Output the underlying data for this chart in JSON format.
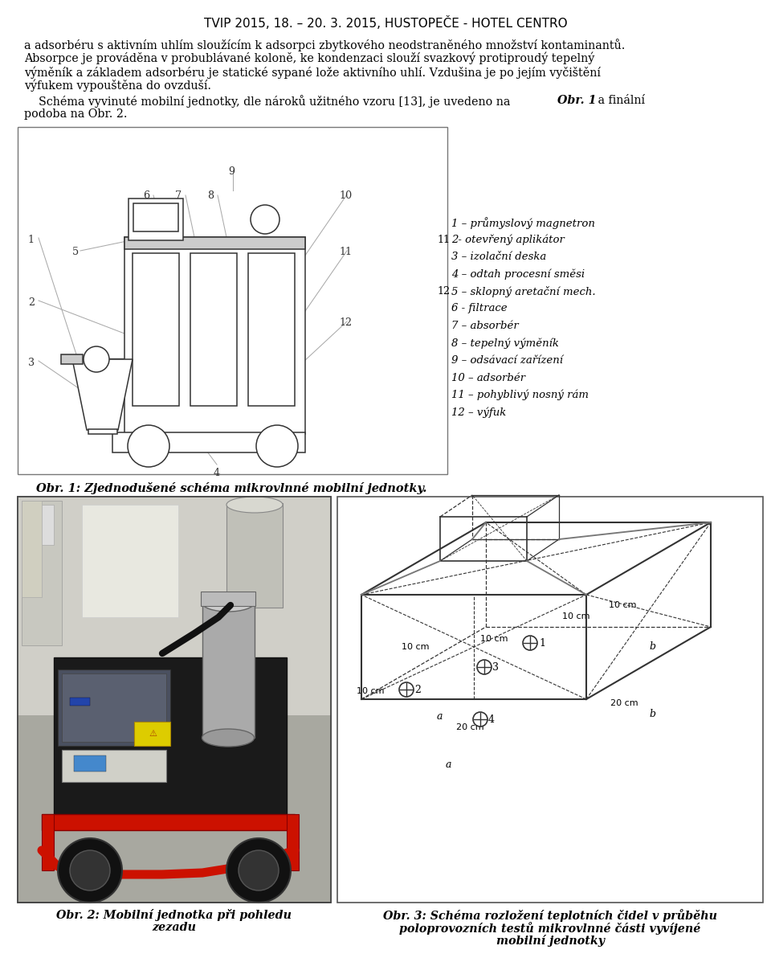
{
  "title": "TVIP 2015, 18. – 20. 3. 2015, HUSTOPEČE - HOTEL CENTRO",
  "legend_items": [
    "1 – průmyslový magnetron",
    "2- otevřený aplikátor",
    "3 – izolační deska",
    "4 – odtah procesní směsi",
    "5 – sklopný aretační mech.",
    "6 - filtrace",
    "7 – absorbér",
    "8 – tepelný výměník",
    "9 – odsávací zařízení",
    "10 – adsorbér",
    "11 – pohyblivý nosný rám",
    "12 – výfuk"
  ],
  "fig1_caption": "Obr. 1: Zjednodušené schéma mikrovlnné mobilní jednotky.",
  "fig2_caption_line1": "Obr. 2: Mobilní jednotka při pohledu",
  "fig2_caption_line2": "zezadu",
  "fig3_caption_line1": "Obr. 3: Schéma rozložení teplotních čidel v průběhu",
  "fig3_caption_line2": "poloprovozních testů mikrovlnné části vyvíjené",
  "fig3_caption_line3": "mobilní jednotky",
  "bg_color": "#ffffff"
}
